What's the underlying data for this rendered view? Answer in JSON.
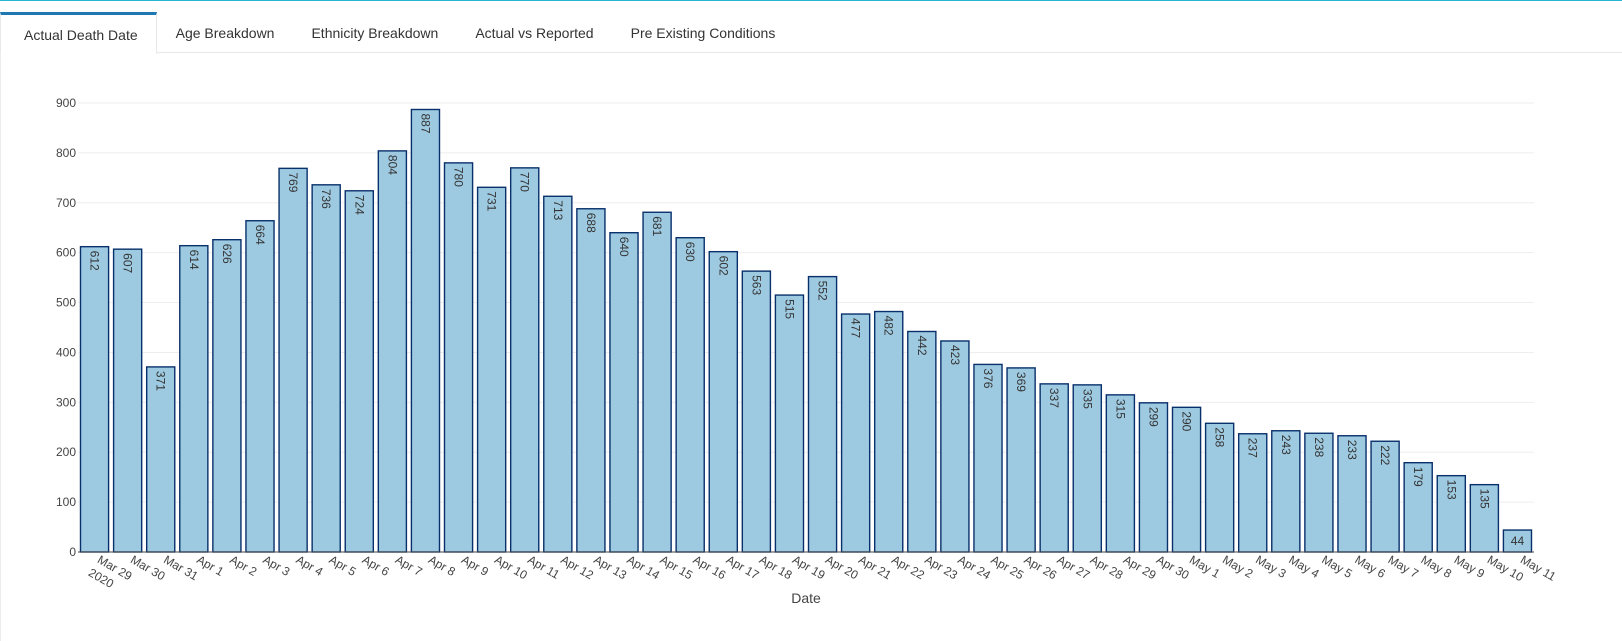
{
  "tabs": [
    {
      "label": "Actual Death Date",
      "active": true
    },
    {
      "label": "Age Breakdown",
      "active": false
    },
    {
      "label": "Ethnicity Breakdown",
      "active": false
    },
    {
      "label": "Actual vs Reported",
      "active": false
    },
    {
      "label": "Pre Existing Conditions",
      "active": false
    }
  ],
  "colors": {
    "bar_fill": "#9ecae1",
    "bar_stroke": "#08306b",
    "grid": "#eeeeee",
    "accent": "#1f77b4"
  },
  "chart_data": {
    "type": "bar",
    "xlabel": "Date",
    "ylabel": "",
    "ylim": [
      0,
      900
    ],
    "yticks": [
      0,
      100,
      200,
      300,
      400,
      500,
      600,
      700,
      800,
      900
    ],
    "grid": true,
    "year_label": "2020",
    "categories": [
      "Mar 29",
      "Mar 30",
      "Mar 31",
      "Apr 1",
      "Apr 2",
      "Apr 3",
      "Apr 4",
      "Apr 5",
      "Apr 6",
      "Apr 7",
      "Apr 8",
      "Apr 9",
      "Apr 10",
      "Apr 11",
      "Apr 12",
      "Apr 13",
      "Apr 14",
      "Apr 15",
      "Apr 16",
      "Apr 17",
      "Apr 18",
      "Apr 19",
      "Apr 20",
      "Apr 21",
      "Apr 22",
      "Apr 23",
      "Apr 24",
      "Apr 25",
      "Apr 26",
      "Apr 27",
      "Apr 28",
      "Apr 29",
      "Apr 30",
      "May 1",
      "May 2",
      "May 3",
      "May 4",
      "May 5",
      "May 6",
      "May 7",
      "May 8",
      "May 9",
      "May 10",
      "May 11"
    ],
    "values": [
      612,
      607,
      371,
      614,
      626,
      664,
      769,
      736,
      724,
      804,
      887,
      780,
      731,
      770,
      713,
      688,
      640,
      681,
      630,
      602,
      563,
      515,
      552,
      477,
      482,
      442,
      423,
      376,
      369,
      337,
      335,
      315,
      299,
      290,
      258,
      237,
      243,
      238,
      233,
      222,
      179,
      153,
      135,
      44
    ]
  }
}
